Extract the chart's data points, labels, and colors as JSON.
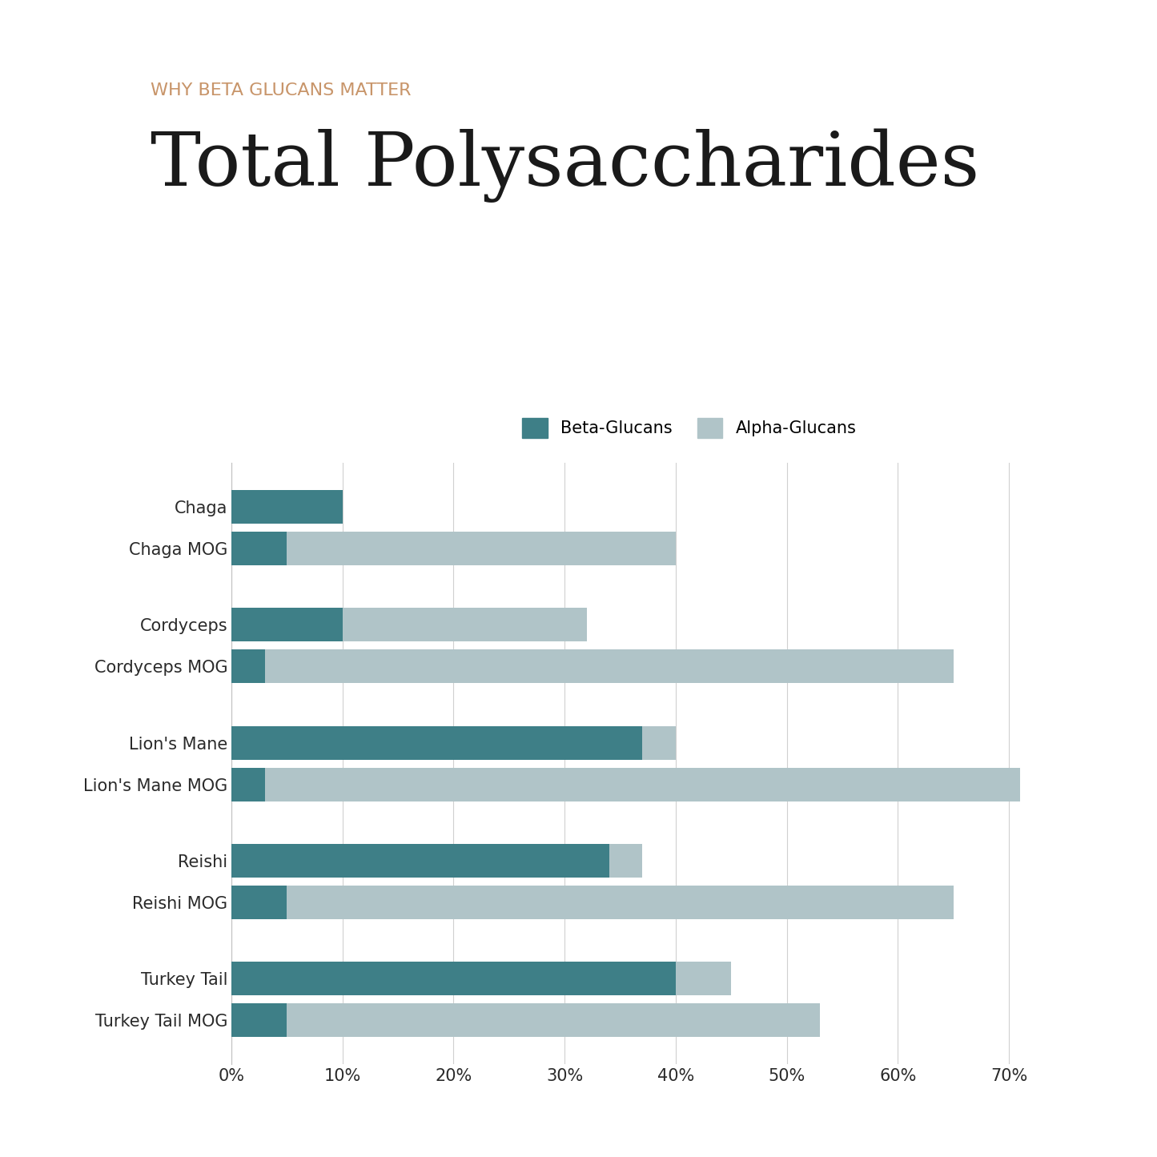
{
  "subtitle": "WHY BETA GLUCANS MATTER",
  "title": "Total Polysaccharides",
  "subtitle_color": "#c8956a",
  "title_color": "#1a1a1a",
  "beta_color": "#3e7f87",
  "alpha_color": "#b0c4c8",
  "background_color": "#ffffff",
  "categories": [
    "Turkey Tail MOG",
    "Turkey Tail",
    "Reishi MOG",
    "Reishi",
    "Lion's Mane MOG",
    "Lion's Mane",
    "Cordyceps MOG",
    "Cordyceps",
    "Chaga MOG",
    "Chaga"
  ],
  "beta_values": [
    5,
    40,
    5,
    34,
    3,
    37,
    3,
    10,
    5,
    10
  ],
  "alpha_values": [
    48,
    5,
    60,
    3,
    68,
    3,
    62,
    22,
    35,
    0
  ],
  "xlim": [
    0,
    75
  ],
  "xticks": [
    0,
    10,
    20,
    30,
    40,
    50,
    60,
    70
  ],
  "xtick_labels": [
    "0%",
    "10%",
    "20%",
    "30%",
    "40%",
    "50%",
    "60%",
    "70%"
  ],
  "legend_beta": "Beta-Glucans",
  "legend_alpha": "Alpha-Glucans"
}
